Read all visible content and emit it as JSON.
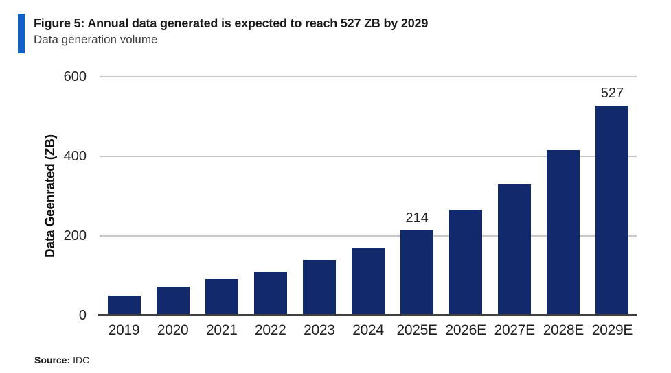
{
  "header": {
    "title": "Figure 5: Annual data generated is expected to reach 527 ZB by 2029",
    "subtitle": "Data generation volume"
  },
  "chart_data": {
    "type": "bar",
    "title": "Figure 5: Annual data generated is expected to reach 527 ZB by 2029",
    "subtitle": "Data generation volume",
    "categories": [
      "2019",
      "2020",
      "2021",
      "2022",
      "2023",
      "2024",
      "2025E",
      "2026E",
      "2027E",
      "2028E",
      "2029E"
    ],
    "values": [
      50,
      72,
      91,
      110,
      140,
      171,
      214,
      265,
      330,
      415,
      527
    ],
    "value_labels": [
      "",
      "",
      "",
      "",
      "",
      "",
      "214",
      "",
      "",
      "",
      "527"
    ],
    "xlabel": "",
    "ylabel": "Data Geenrated (ZB)",
    "ylim": [
      0,
      600
    ],
    "yticks": [
      0,
      200,
      400,
      600
    ],
    "grid": "horizontal",
    "legend": "none"
  },
  "colors": {
    "accent_bar": "#1161c6",
    "bar": "#122a6b",
    "gridline": "#c6c6c6",
    "axis_line": "#3f3f3f"
  },
  "footer": {
    "source_label": "Source:",
    "source_value": "IDC"
  }
}
